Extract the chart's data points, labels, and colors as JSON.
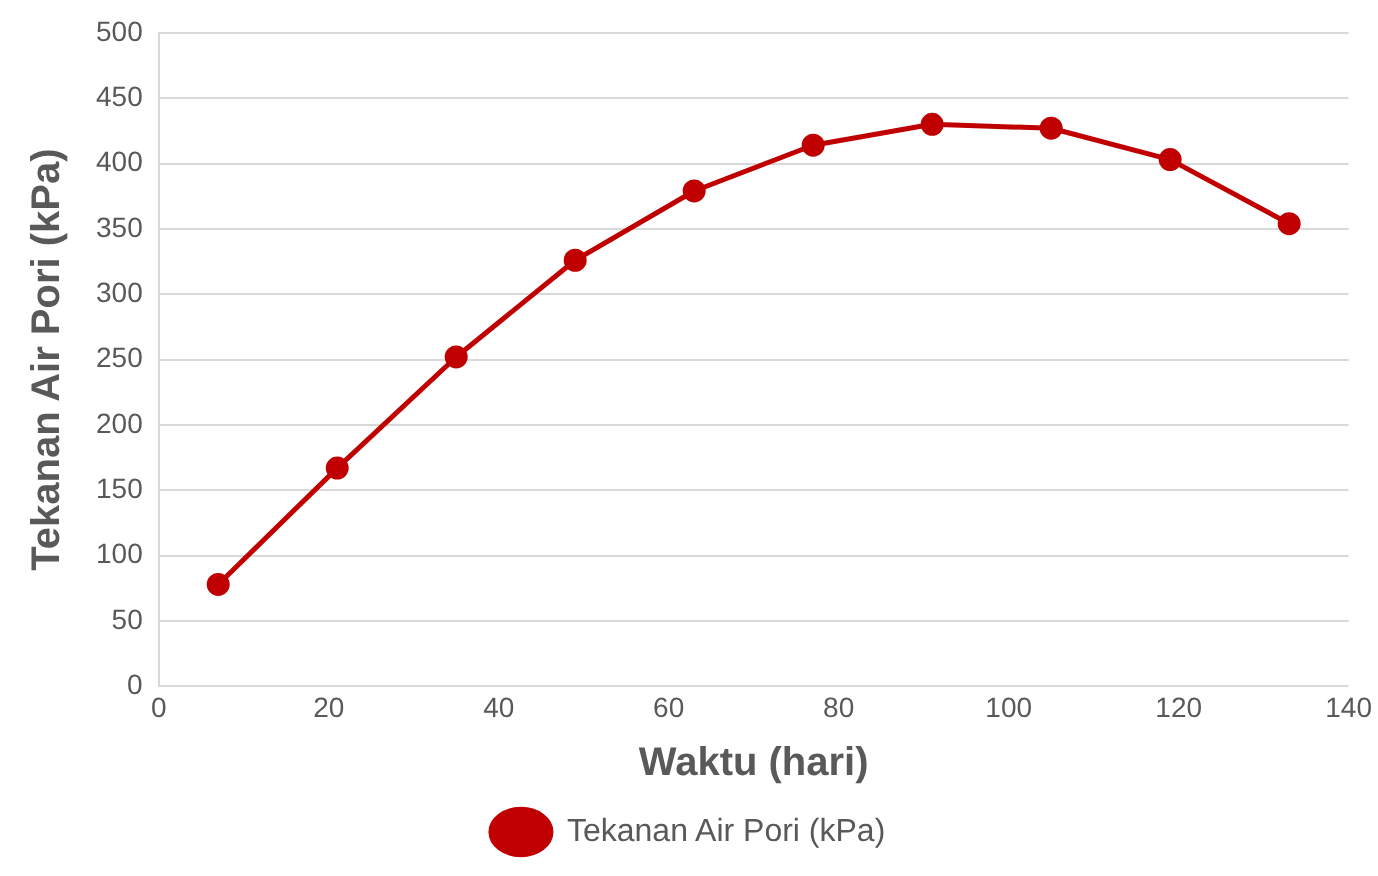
{
  "chart_data": {
    "type": "line",
    "xlabel": "Waktu (hari)",
    "ylabel": "Tekanan Air Pori (kPa)",
    "x": [
      7,
      21,
      35,
      49,
      63,
      77,
      91,
      105,
      119,
      133
    ],
    "series": [
      {
        "name": "Tekanan Air Pori (kPa)",
        "color": "#c00000",
        "values": [
          78,
          167,
          252,
          326,
          379,
          414,
          430,
          427,
          403,
          354
        ]
      }
    ],
    "xlim": [
      0,
      140
    ],
    "xticks": [
      0,
      20,
      40,
      60,
      80,
      100,
      120,
      140
    ],
    "ylim": [
      0,
      500
    ],
    "yticks": [
      0,
      50,
      100,
      150,
      200,
      250,
      300,
      350,
      400,
      450,
      500
    ],
    "grid": "y",
    "legend": "bottom",
    "marker": "circle",
    "line_style": "solid"
  }
}
